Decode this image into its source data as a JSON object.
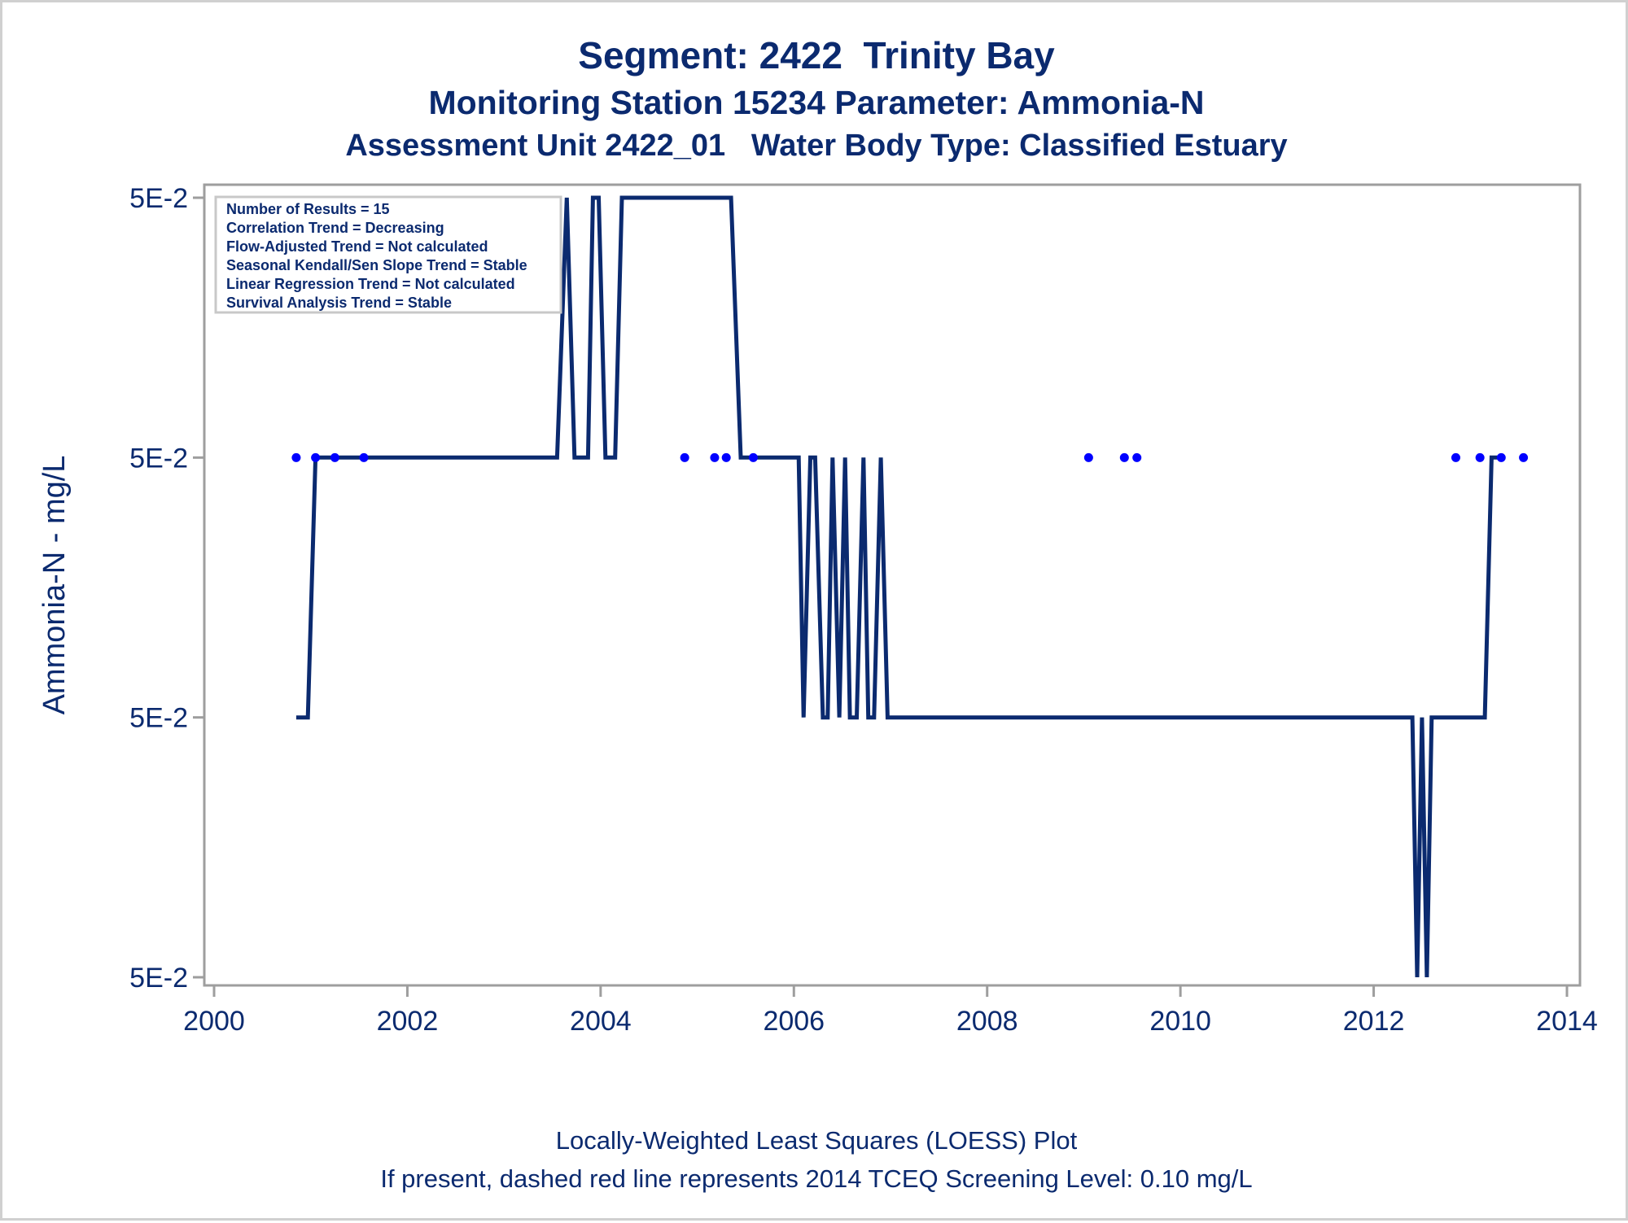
{
  "title": "Segment: 2422  Trinity Bay",
  "subtitle1": "Monitoring Station 15234 Parameter: Ammonia-N",
  "subtitle2": "Assessment Unit 2422_01   Water Body Type: Classified Estuary",
  "footnote1": "Locally-Weighted Least Squares (LOESS) Plot",
  "footnote2": "If present, dashed red line represents 2014 TCEQ Screening Level: 0.10 mg/L",
  "colors": {
    "text": "#0b2a6f",
    "line": "#0b2a6f",
    "points": "#0000ff",
    "axis": "#9e9e9e"
  },
  "stats_box": [
    "Number of Results = 15",
    "Correlation Trend = Decreasing",
    "Flow-Adjusted Trend = Not calculated",
    "Seasonal Kendall/Sen Slope Trend = Stable",
    "Linear Regression Trend = Not calculated",
    "Survival Analysis Trend = Stable"
  ],
  "chart_data": {
    "type": "line",
    "ylabel": "Ammonia-N - mg/L",
    "xlabel": "",
    "xlim": [
      2000,
      2014
    ],
    "x_ticks": [
      2000,
      2002,
      2004,
      2006,
      2008,
      2010,
      2012,
      2014
    ],
    "y_tick_labels": [
      "5E-2",
      "5E-2",
      "5E-2",
      "5E-2"
    ],
    "y_tick_levels": [
      3,
      2,
      1,
      0
    ],
    "ylim": [
      0,
      3
    ],
    "grid": false,
    "legend": "none",
    "series": [
      {
        "kind": "line",
        "x": [
          2000.85,
          2000.97,
          2001.05,
          2003.55,
          2003.65,
          2003.73,
          2003.87,
          2003.92,
          2003.98,
          2004.05,
          2004.15,
          2004.22,
          2005.35,
          2005.45,
          2006.05,
          2006.1,
          2006.17,
          2006.22,
          2006.3,
          2006.35,
          2006.4,
          2006.47,
          2006.53,
          2006.58,
          2006.65,
          2006.72,
          2006.77,
          2006.83,
          2006.9,
          2006.97,
          2012.4,
          2012.45,
          2012.5,
          2012.55,
          2012.6,
          2012.65,
          2013.15,
          2013.22,
          2013.32
        ],
        "y": [
          1,
          1,
          2,
          2,
          3,
          2,
          2,
          3,
          3,
          2,
          2,
          3,
          3,
          2,
          2,
          1,
          2,
          2,
          1,
          1,
          2,
          1,
          2,
          1,
          1,
          2,
          1,
          1,
          2,
          1,
          1,
          0,
          1,
          0,
          1,
          1,
          1,
          2,
          2
        ]
      },
      {
        "kind": "points",
        "x": [
          2000.85,
          2001.05,
          2001.25,
          2001.55,
          2004.87,
          2005.18,
          2005.3,
          2005.58,
          2009.05,
          2009.42,
          2009.55,
          2012.85,
          2013.1,
          2013.32,
          2013.55
        ],
        "y": [
          2,
          2,
          2,
          2,
          2,
          2,
          2,
          2,
          2,
          2,
          2,
          2,
          2,
          2,
          2
        ]
      }
    ]
  }
}
